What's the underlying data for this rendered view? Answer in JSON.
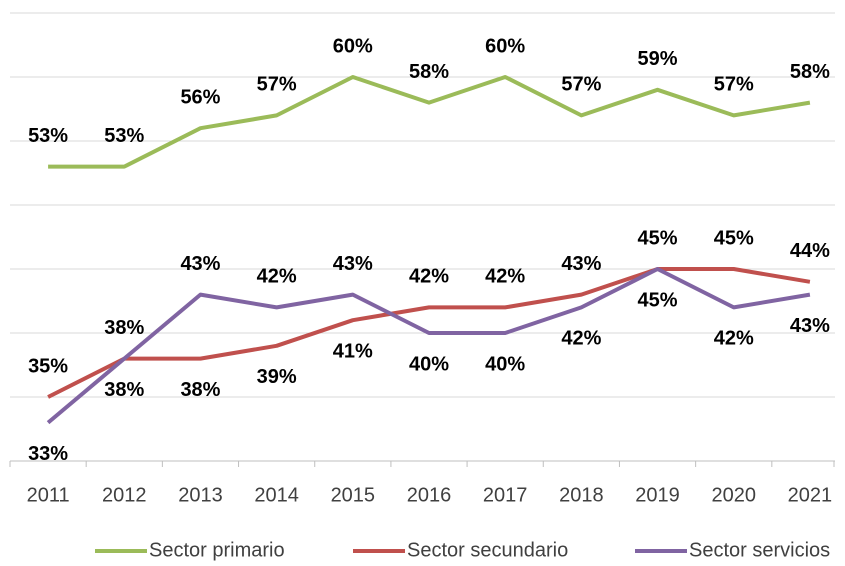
{
  "chart_data": {
    "type": "line",
    "categories": [
      "2011",
      "2012",
      "2013",
      "2014",
      "2015",
      "2016",
      "2017",
      "2018",
      "2019",
      "2020",
      "2021"
    ],
    "series": [
      {
        "name": "Sector primario",
        "color": "#9bbb59",
        "values": [
          53,
          53,
          56,
          57,
          60,
          58,
          60,
          57,
          59,
          57,
          58
        ],
        "value_labels": [
          "53%",
          "53%",
          "56%",
          "57%",
          "60%",
          "58%",
          "60%",
          "57%",
          "59%",
          "57%",
          "58%"
        ]
      },
      {
        "name": "Sector secundario",
        "color": "#c0504d",
        "values": [
          35,
          38,
          38,
          39,
          41,
          42,
          42,
          43,
          45,
          45,
          44
        ],
        "value_labels": [
          "35%",
          "38%",
          "38%",
          "39%",
          "41%",
          "42%",
          "42%",
          "43%",
          "45%",
          "45%",
          "44%"
        ]
      },
      {
        "name": "Sector servicios",
        "color": "#8064a2",
        "values": [
          33,
          38,
          43,
          42,
          43,
          40,
          40,
          42,
          45,
          42,
          43
        ],
        "value_labels": [
          "33%",
          "38%",
          "43%",
          "42%",
          "43%",
          "40%",
          "40%",
          "42%",
          "45%",
          "42%",
          "43%"
        ]
      }
    ],
    "ylim": [
      30,
      65
    ],
    "yticks": [
      30,
      35,
      40,
      45,
      50,
      55,
      60,
      65
    ],
    "grid": true,
    "legend": "bottom"
  }
}
